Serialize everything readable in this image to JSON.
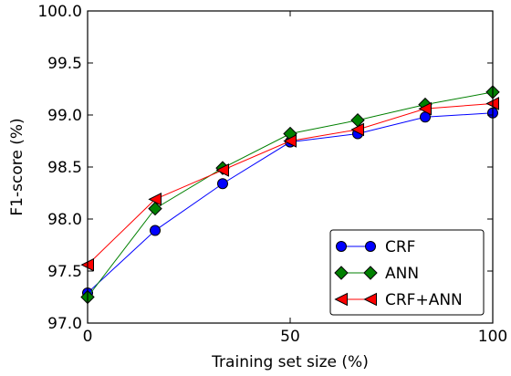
{
  "chart_data": {
    "type": "line",
    "xlabel": "Training set size (%)",
    "ylabel": "F1-score (%)",
    "xlim": [
      0,
      100
    ],
    "ylim": [
      97.0,
      100.0
    ],
    "xticks": [
      0,
      50,
      100
    ],
    "yticks": [
      97.0,
      97.5,
      98.0,
      98.5,
      99.0,
      99.5,
      100.0
    ],
    "ytick_labels": [
      "97.0",
      "97.5",
      "98.0",
      "98.5",
      "99.0",
      "99.5",
      "100.0"
    ],
    "xtick_labels": [
      "0",
      "50",
      "100"
    ],
    "grid": false,
    "legend_position": "bottom-right",
    "x": [
      0,
      16.67,
      33.33,
      50,
      66.67,
      83.33,
      100
    ],
    "series": [
      {
        "name": "CRF",
        "marker": "circle",
        "color": "#0000ff",
        "values": [
          97.29,
          97.89,
          98.34,
          98.74,
          98.82,
          98.98,
          99.02
        ]
      },
      {
        "name": "ANN",
        "marker": "diamond",
        "color": "#008000",
        "values": [
          97.25,
          98.1,
          98.49,
          98.82,
          98.95,
          99.1,
          99.22
        ]
      },
      {
        "name": "CRF+ANN",
        "marker": "triangle-left",
        "color": "#ff0000",
        "values": [
          97.56,
          98.19,
          98.47,
          98.75,
          98.86,
          99.06,
          99.11
        ]
      }
    ]
  }
}
